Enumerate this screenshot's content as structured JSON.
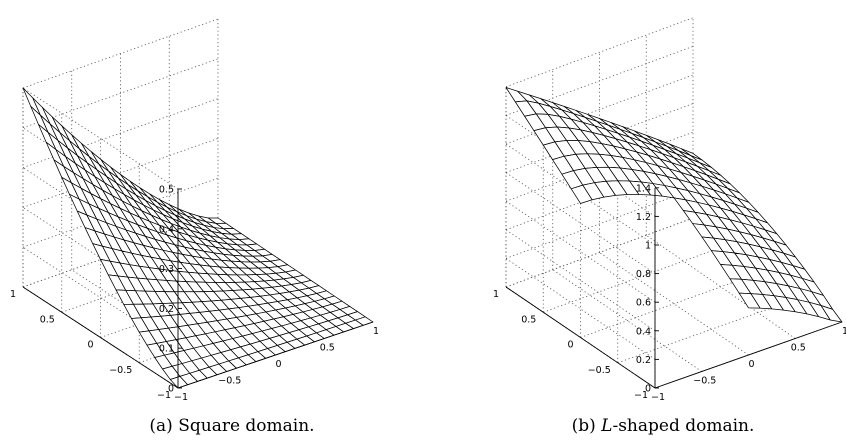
{
  "chart_data": [
    {
      "type": "surface",
      "caption_label": "(a)",
      "caption_text": "Square domain.",
      "x_ticks": [
        "−1",
        "−0.5",
        "0",
        "0.5",
        "1"
      ],
      "y_ticks": [
        "−1",
        "−0.5",
        "0",
        "0.5",
        "1"
      ],
      "z_ticks": [
        "0",
        "0.1",
        "0.2",
        "0.3",
        "0.4",
        "0.5"
      ],
      "xlim": [
        -1,
        1
      ],
      "ylim": [
        -1,
        1
      ],
      "zlim": [
        0,
        0.5
      ],
      "grid": true,
      "domain": "square",
      "mesh_divisions": 20
    },
    {
      "type": "surface",
      "caption_label": "(b)",
      "caption_italic": "L",
      "caption_text": "-shaped domain.",
      "x_ticks": [
        "−1",
        "−0.5",
        "0",
        "0.5",
        "1"
      ],
      "y_ticks": [
        "−1",
        "−0.5",
        "0",
        "0.5",
        "1"
      ],
      "z_ticks": [
        "0",
        "0.2",
        "0.4",
        "0.6",
        "0.8",
        "1",
        "1.2",
        "1.4"
      ],
      "xlim": [
        -1,
        1
      ],
      "ylim": [
        -1,
        1
      ],
      "zlim": [
        0,
        1.4
      ],
      "grid": true,
      "domain": "L-shaped",
      "mesh_divisions": 16
    }
  ]
}
